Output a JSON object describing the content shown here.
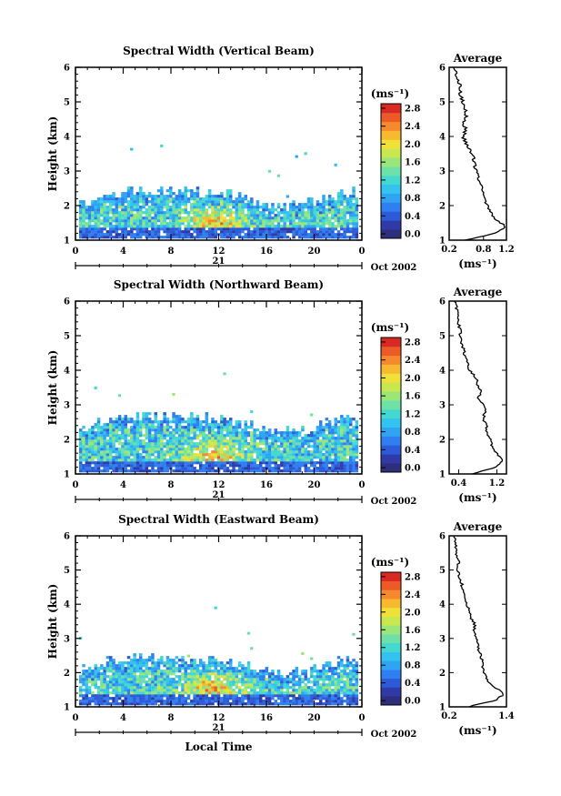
{
  "figure": {
    "xlabel": "Local Time",
    "date_label": "21",
    "month_label": "Oct 2002",
    "colorbar_unit": "(ms⁻¹)",
    "avg_unit": "(ms⁻¹)",
    "avg_title": "Average",
    "ylabel": "Height (km)"
  },
  "colors": {
    "colormap": [
      "#2c2f7a",
      "#2f3aa8",
      "#2d5bd6",
      "#2f7ff0",
      "#2fa4f2",
      "#33c3ee",
      "#45d8d0",
      "#6fe0a6",
      "#9ae67a",
      "#c7e84e",
      "#f0e03a",
      "#f7b92f",
      "#f48a2b",
      "#ec5a27",
      "#d82a22"
    ]
  },
  "chart_data": [
    {
      "type": "heatmap",
      "title": "Spectral Width (Vertical Beam)",
      "ylabel": "Height (km)",
      "xlabel": "",
      "x_ticks": [
        "0",
        "4",
        "8",
        "12",
        "16",
        "20",
        "0"
      ],
      "y_ticks": [
        "1",
        "2",
        "3",
        "4",
        "5",
        "6"
      ],
      "xlim": [
        0,
        24
      ],
      "ylim": [
        1,
        6
      ],
      "colorbar": {
        "label": "(ms⁻¹)",
        "ticks": [
          "0.0",
          "0.4",
          "0.8",
          "1.2",
          "1.6",
          "2.0",
          "2.4",
          "2.8"
        ],
        "range": [
          0,
          3.0
        ]
      },
      "profile": {
        "title": "Average",
        "xlabel": "(ms⁻¹)",
        "x_ticks": [
          "0.2",
          "0.8",
          "1.2"
        ],
        "xlim": [
          0.2,
          1.2
        ],
        "heights": [
          1.0,
          1.2,
          1.4,
          1.6,
          1.8,
          2.0,
          2.2,
          2.4,
          2.6,
          2.8,
          3.0,
          3.2,
          3.4,
          3.6,
          3.8,
          4.0,
          4.2,
          4.4,
          4.6,
          4.8,
          5.0,
          5.2,
          5.4,
          5.6,
          5.8,
          6.0
        ],
        "values": [
          0.5,
          1.0,
          1.18,
          1.0,
          0.92,
          0.86,
          0.84,
          0.8,
          0.74,
          0.72,
          0.68,
          0.64,
          0.62,
          0.56,
          0.5,
          0.44,
          0.5,
          0.44,
          0.5,
          0.48,
          0.44,
          0.4,
          0.4,
          0.36,
          0.32,
          0.3
        ]
      }
    },
    {
      "type": "heatmap",
      "title": "Spectral Width (Northward Beam)",
      "ylabel": "Height (km)",
      "xlabel": "",
      "x_ticks": [
        "0",
        "4",
        "8",
        "12",
        "16",
        "20",
        "0"
      ],
      "y_ticks": [
        "1",
        "2",
        "3",
        "4",
        "5",
        "6"
      ],
      "xlim": [
        0,
        24
      ],
      "ylim": [
        1,
        6
      ],
      "colorbar": {
        "label": "(ms⁻¹)",
        "ticks": [
          "0.0",
          "0.4",
          "0.8",
          "1.2",
          "1.6",
          "2.0",
          "2.4",
          "2.8"
        ],
        "range": [
          0,
          3.0
        ]
      },
      "profile": {
        "title": "Average",
        "xlabel": "(ms⁻¹)",
        "x_ticks": [
          "0.4",
          "1.2"
        ],
        "xlim": [
          0.2,
          1.4
        ],
        "heights": [
          1.0,
          1.2,
          1.4,
          1.6,
          1.8,
          2.0,
          2.2,
          2.4,
          2.6,
          2.8,
          3.0,
          3.2,
          3.4,
          3.6,
          3.8,
          4.0,
          4.2,
          4.4,
          4.6,
          4.8,
          5.0,
          5.2,
          5.4,
          5.6,
          5.8,
          6.0
        ],
        "values": [
          0.7,
          1.2,
          1.3,
          1.2,
          1.1,
          1.08,
          1.0,
          0.98,
          0.92,
          0.95,
          0.92,
          0.82,
          0.86,
          0.8,
          0.76,
          0.62,
          0.58,
          0.54,
          0.5,
          0.46,
          0.44,
          0.42,
          0.4,
          0.38,
          0.35,
          0.32
        ]
      }
    },
    {
      "type": "heatmap",
      "title": "Spectral Width (Eastward Beam)",
      "ylabel": "Height (km)",
      "xlabel": "Local Time",
      "x_ticks": [
        "0",
        "4",
        "8",
        "12",
        "16",
        "20",
        "0"
      ],
      "y_ticks": [
        "1",
        "2",
        "3",
        "4",
        "5",
        "6"
      ],
      "xlim": [
        0,
        24
      ],
      "ylim": [
        1,
        6
      ],
      "colorbar": {
        "label": "(ms⁻¹)",
        "ticks": [
          "0.0",
          "0.4",
          "0.8",
          "1.2",
          "1.6",
          "2.0",
          "2.4",
          "2.8"
        ],
        "range": [
          0,
          3.0
        ]
      },
      "profile": {
        "title": "Average",
        "xlabel": "(ms⁻¹)",
        "x_ticks": [
          "0.2",
          "1.4"
        ],
        "xlim": [
          0.2,
          1.4
        ],
        "heights": [
          1.0,
          1.2,
          1.4,
          1.6,
          1.8,
          2.0,
          2.2,
          2.4,
          2.6,
          2.8,
          3.0,
          3.2,
          3.4,
          3.6,
          3.8,
          4.0,
          4.2,
          4.4,
          4.6,
          4.8,
          5.0,
          5.2,
          5.4,
          5.6,
          5.8,
          6.0
        ],
        "values": [
          0.6,
          1.2,
          1.35,
          1.1,
          1.0,
          0.92,
          0.9,
          0.88,
          0.84,
          0.8,
          0.78,
          0.72,
          0.74,
          0.66,
          0.62,
          0.56,
          0.52,
          0.48,
          0.46,
          0.42,
          0.38,
          0.4,
          0.36,
          0.34,
          0.32,
          0.3
        ]
      }
    }
  ]
}
